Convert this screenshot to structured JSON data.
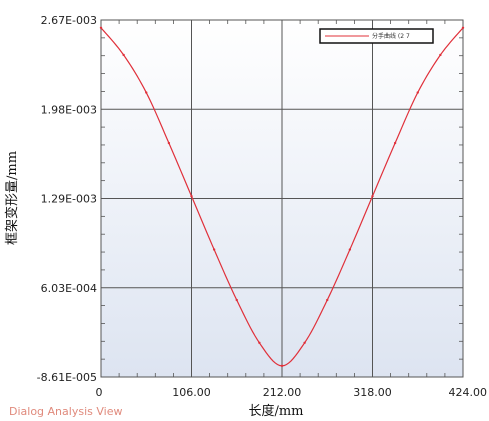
{
  "chart_data": {
    "type": "line",
    "title": "",
    "xlabel": "长度/mm",
    "ylabel": "框架变形量/mm",
    "xlim": [
      0,
      424
    ],
    "ylim": [
      -8.61e-05,
      0.00267
    ],
    "x_ticks": [
      "0",
      "106.00",
      "212.00",
      "318.00",
      "424.00"
    ],
    "y_ticks": [
      "-8.61E-005",
      "6.03E-004",
      "1.29E-003",
      "1.98E-003",
      "2.67E-003"
    ],
    "grid": true,
    "legend_position": "top-right",
    "series": [
      {
        "name": "分手曲线 (2 7",
        "color": "#e0303a",
        "x": [
          0,
          26.5,
          53,
          79.5,
          106,
          132.5,
          159,
          185.5,
          212,
          238.5,
          265,
          291.5,
          318,
          344.5,
          371,
          397.5,
          424
        ],
        "y": [
          0.00261,
          0.0024,
          0.00211,
          0.00172,
          0.00131,
          0.000898,
          0.000508,
          0.000178,
          0.0,
          0.000178,
          0.000508,
          0.000898,
          0.00131,
          0.00172,
          0.00211,
          0.0024,
          0.00261
        ]
      }
    ]
  },
  "footer": {
    "label": "Dialog Analysis View"
  },
  "colors": {
    "plot_background_top": "#ffffff",
    "plot_background_bottom": "#dde4f1",
    "grid_line": "#555555",
    "series_line": "#e0303a"
  }
}
